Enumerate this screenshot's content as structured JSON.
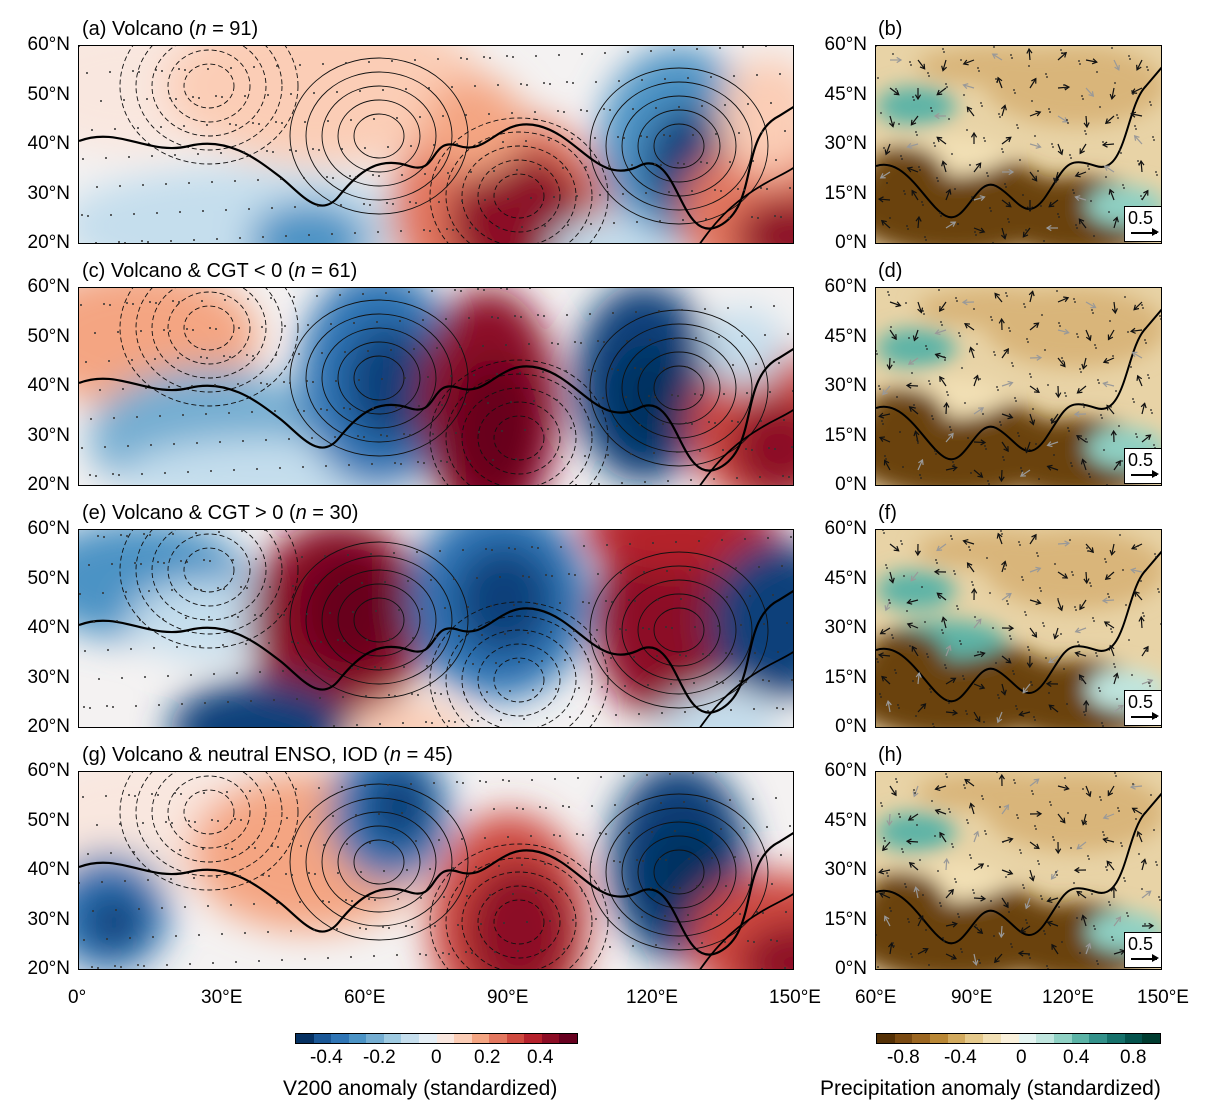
{
  "left_panels": [
    {
      "title_pre": "(a) Volcano (",
      "title_n": "n",
      "title_post": " = 91)"
    },
    {
      "title_pre": "(c) Volcano & CGT < 0 (",
      "title_n": "n",
      "title_post": " = 61)"
    },
    {
      "title_pre": "(e) Volcano & CGT > 0 (",
      "title_n": "n",
      "title_post": " = 30)"
    },
    {
      "title_pre": "(g) Volcano & neutral ENSO, IOD (",
      "title_n": "n",
      "title_post": " = 45)"
    }
  ],
  "right_panels": [
    {
      "title": "(b)"
    },
    {
      "title": "(d)"
    },
    {
      "title": "(f)"
    },
    {
      "title": "(h)"
    }
  ],
  "left_lat_labels": [
    "60°N",
    "50°N",
    "40°N",
    "30°N",
    "20°N"
  ],
  "right_lat_labels": [
    "60°N",
    "45°N",
    "30°N",
    "15°N",
    "0°N"
  ],
  "left_lon_labels": [
    "0°",
    "30°E",
    "60°E",
    "90°E",
    "120°E",
    "150°E"
  ],
  "right_lon_labels": [
    "60°E",
    "90°E",
    "120°E",
    "150°E"
  ],
  "reference_vector_label": "0.5",
  "v200_colorbar": {
    "title": "V200 anomaly (standardized)",
    "tick_labels": [
      "-0.4",
      "-0.2",
      "0",
      "0.2",
      "0.4"
    ],
    "colors": [
      "#053061",
      "#1a5796",
      "#2f75b5",
      "#4b93c5",
      "#74add1",
      "#9ecae1",
      "#c5deed",
      "#e4eef5",
      "#f9e7df",
      "#fbcdb6",
      "#f4a582",
      "#e3775f",
      "#cf4a3f",
      "#b5222c",
      "#8c0d25",
      "#67001f"
    ]
  },
  "precip_colorbar": {
    "title": "Precipitation anomaly (standardized)",
    "tick_labels": [
      "-0.8",
      "-0.4",
      "0",
      "0.4",
      "0.8"
    ],
    "colors": [
      "#543005",
      "#7a4a12",
      "#9b6621",
      "#b98735",
      "#d2aa5e",
      "#e5c98b",
      "#f2e0b5",
      "#faf1dc",
      "#e4f4f1",
      "#c0e6df",
      "#8fd1c4",
      "#5bb3a6",
      "#33918a",
      "#16716b",
      "#05534d",
      "#003c30"
    ]
  },
  "map_colors": {
    "strong_red": "#8c0d25",
    "red": "#e3775f",
    "light_red": "#fbcdb6",
    "strong_blue": "#0d3f7a",
    "blue": "#4b93c5",
    "light_blue": "#c5deed",
    "brown": "#6b4310",
    "tan": "#d9b57a",
    "teal": "#5bb3a6"
  }
}
